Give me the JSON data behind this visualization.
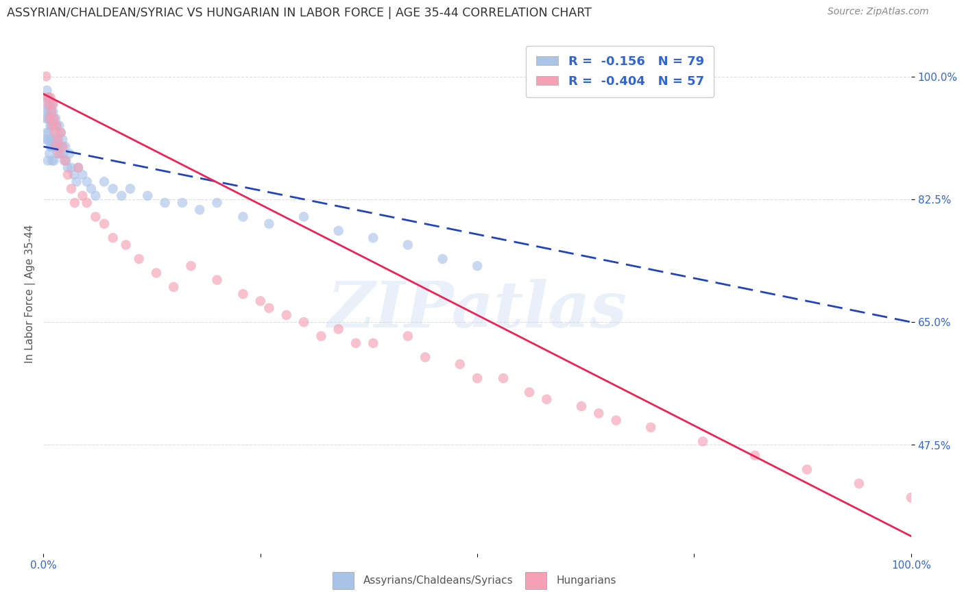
{
  "title": "ASSYRIAN/CHALDEAN/SYRIAC VS HUNGARIAN IN LABOR FORCE | AGE 35-44 CORRELATION CHART",
  "source": "Source: ZipAtlas.com",
  "ylabel": "In Labor Force | Age 35-44",
  "xlim": [
    0.0,
    1.0
  ],
  "ylim": [
    0.32,
    1.06
  ],
  "yticks": [
    0.475,
    0.65,
    0.825,
    1.0
  ],
  "ytick_labels": [
    "47.5%",
    "65.0%",
    "82.5%",
    "100.0%"
  ],
  "xticks": [
    0.0,
    0.25,
    0.5,
    0.75,
    1.0
  ],
  "xtick_labels": [
    "0.0%",
    "",
    "",
    "",
    "100.0%"
  ],
  "grid_color": "#dddddd",
  "background_color": "#ffffff",
  "title_color": "#333333",
  "axis_label_color": "#555555",
  "source_color": "#888888",
  "blue_scatter_color": "#aac4e8",
  "pink_scatter_color": "#f5a0b5",
  "blue_line_color": "#2244bb",
  "pink_line_color": "#ee2255",
  "legend_R_blue": "R =  -0.156",
  "legend_N_blue": "N = 79",
  "legend_R_pink": "R =  -0.404",
  "legend_N_pink": "N = 57",
  "legend_label_blue": "Assyrians/Chaldeans/Syriacs",
  "legend_label_pink": "Hungarians",
  "watermark": "ZIPatlas",
  "blue_scatter_x": [
    0.002,
    0.003,
    0.003,
    0.004,
    0.004,
    0.004,
    0.005,
    0.005,
    0.005,
    0.005,
    0.006,
    0.006,
    0.006,
    0.007,
    0.007,
    0.007,
    0.007,
    0.008,
    0.008,
    0.008,
    0.009,
    0.009,
    0.009,
    0.01,
    0.01,
    0.01,
    0.01,
    0.011,
    0.011,
    0.011,
    0.012,
    0.012,
    0.012,
    0.013,
    0.013,
    0.014,
    0.014,
    0.015,
    0.015,
    0.016,
    0.016,
    0.017,
    0.018,
    0.018,
    0.019,
    0.02,
    0.021,
    0.022,
    0.023,
    0.024,
    0.025,
    0.026,
    0.028,
    0.03,
    0.032,
    0.035,
    0.038,
    0.04,
    0.045,
    0.05,
    0.055,
    0.06,
    0.07,
    0.08,
    0.09,
    0.1,
    0.12,
    0.14,
    0.16,
    0.18,
    0.2,
    0.23,
    0.26,
    0.3,
    0.34,
    0.38,
    0.42,
    0.46,
    0.5
  ],
  "blue_scatter_y": [
    0.96,
    0.94,
    0.91,
    0.98,
    0.95,
    0.92,
    0.97,
    0.94,
    0.91,
    0.88,
    0.97,
    0.95,
    0.92,
    0.96,
    0.94,
    0.91,
    0.89,
    0.96,
    0.93,
    0.9,
    0.95,
    0.93,
    0.9,
    0.96,
    0.94,
    0.91,
    0.88,
    0.95,
    0.93,
    0.9,
    0.94,
    0.91,
    0.88,
    0.93,
    0.9,
    0.94,
    0.91,
    0.93,
    0.9,
    0.92,
    0.89,
    0.91,
    0.93,
    0.9,
    0.89,
    0.92,
    0.9,
    0.91,
    0.89,
    0.88,
    0.9,
    0.88,
    0.87,
    0.89,
    0.87,
    0.86,
    0.85,
    0.87,
    0.86,
    0.85,
    0.84,
    0.83,
    0.85,
    0.84,
    0.83,
    0.84,
    0.83,
    0.82,
    0.82,
    0.81,
    0.82,
    0.8,
    0.79,
    0.8,
    0.78,
    0.77,
    0.76,
    0.74,
    0.73
  ],
  "pink_scatter_x": [
    0.003,
    0.004,
    0.006,
    0.007,
    0.008,
    0.009,
    0.01,
    0.011,
    0.012,
    0.013,
    0.014,
    0.015,
    0.016,
    0.018,
    0.02,
    0.022,
    0.025,
    0.028,
    0.032,
    0.036,
    0.04,
    0.045,
    0.05,
    0.06,
    0.07,
    0.08,
    0.095,
    0.11,
    0.13,
    0.15,
    0.17,
    0.2,
    0.23,
    0.26,
    0.3,
    0.34,
    0.38,
    0.42,
    0.48,
    0.53,
    0.58,
    0.64,
    0.7,
    0.76,
    0.82,
    0.88,
    0.94,
    1.0,
    0.25,
    0.28,
    0.32,
    0.36,
    0.44,
    0.5,
    0.56,
    0.62,
    0.66
  ],
  "pink_scatter_y": [
    1.0,
    0.97,
    0.96,
    0.94,
    0.97,
    0.95,
    0.93,
    0.96,
    0.94,
    0.92,
    0.9,
    0.93,
    0.91,
    0.89,
    0.92,
    0.9,
    0.88,
    0.86,
    0.84,
    0.82,
    0.87,
    0.83,
    0.82,
    0.8,
    0.79,
    0.77,
    0.76,
    0.74,
    0.72,
    0.7,
    0.73,
    0.71,
    0.69,
    0.67,
    0.65,
    0.64,
    0.62,
    0.63,
    0.59,
    0.57,
    0.54,
    0.52,
    0.5,
    0.48,
    0.46,
    0.44,
    0.42,
    0.4,
    0.68,
    0.66,
    0.63,
    0.62,
    0.6,
    0.57,
    0.55,
    0.53,
    0.51
  ],
  "blue_line_x": [
    0.0,
    1.0
  ],
  "blue_line_y": [
    0.9,
    0.65
  ],
  "pink_line_x": [
    0.0,
    1.0
  ],
  "pink_line_y": [
    0.975,
    0.345
  ]
}
